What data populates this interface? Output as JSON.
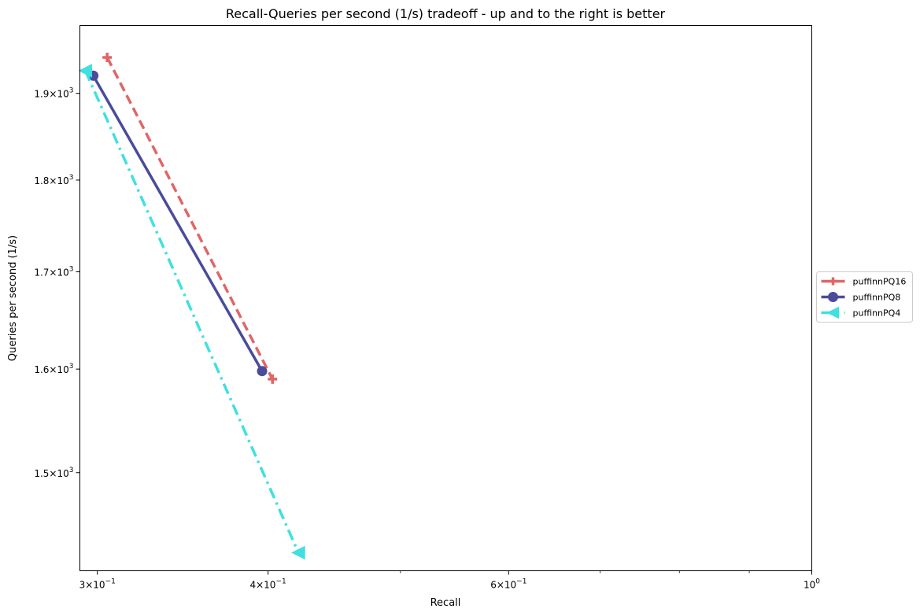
{
  "chart_data": {
    "type": "line",
    "title": "Recall-Queries per second (1/s) tradeoff - up and to the right is better",
    "xlabel": "Recall",
    "ylabel": "Queries per second (1/s)",
    "xscale": "log",
    "yscale": "log",
    "xlim": [
      0.2913,
      1.0
    ],
    "ylim": [
      1411,
      1982
    ],
    "x_ticks": [
      {
        "value": 0.3,
        "base": "3×10",
        "exp": "−1"
      },
      {
        "value": 0.4,
        "base": "4×10",
        "exp": "−1"
      },
      {
        "value": 0.6,
        "base": "6×10",
        "exp": "−1"
      },
      {
        "value": 1.0,
        "base": "10",
        "exp": "0"
      }
    ],
    "x_minor_ticks": [
      0.5,
      0.7,
      0.8,
      0.9
    ],
    "y_ticks": [
      {
        "value": 1500,
        "base": "1.5×10",
        "exp": "3"
      },
      {
        "value": 1600,
        "base": "1.6×10",
        "exp": "3"
      },
      {
        "value": 1700,
        "base": "1.7×10",
        "exp": "3"
      },
      {
        "value": 1800,
        "base": "1.8×10",
        "exp": "3"
      },
      {
        "value": 1900,
        "base": "1.9×10",
        "exp": "3"
      }
    ],
    "grid": false,
    "legend_position": "outside-right",
    "series": [
      {
        "name": "puffinnPQ16",
        "color": "#e06666",
        "dash": "dashed",
        "marker": "plus",
        "x": [
          0.305,
          0.403
        ],
        "y": [
          1943,
          1590
        ]
      },
      {
        "name": "puffinnPQ8",
        "color": "#4b4b9c",
        "dash": "solid",
        "marker": "circle",
        "x": [
          0.298,
          0.396
        ],
        "y": [
          1921,
          1598
        ]
      },
      {
        "name": "puffinnPQ4",
        "color": "#40e0e0",
        "dash": "dashdot",
        "marker": "triangle-left",
        "x": [
          0.294,
          0.421
        ],
        "y": [
          1927,
          1427
        ]
      }
    ]
  }
}
